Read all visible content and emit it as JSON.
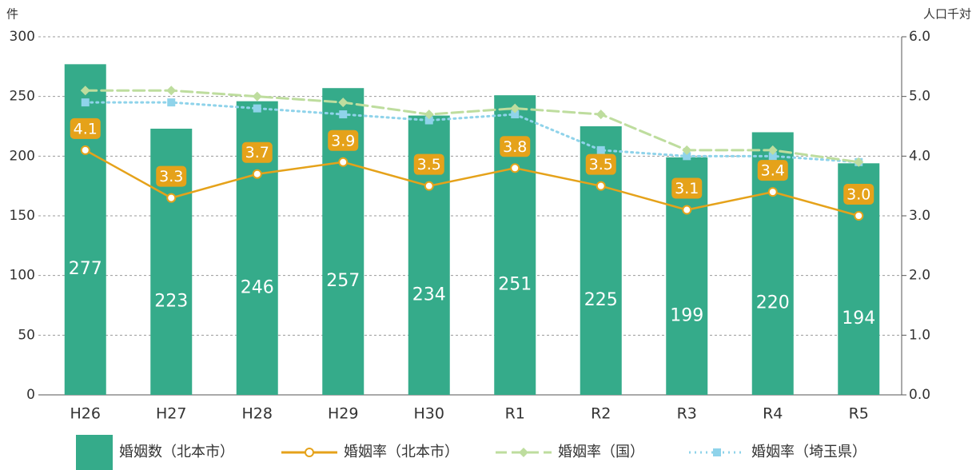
{
  "chart_data": {
    "type": "bar",
    "y_unit": "件",
    "y2_unit": "人口千対",
    "categories": [
      "H26",
      "H27",
      "H28",
      "H29",
      "H30",
      "R1",
      "R2",
      "R3",
      "R4",
      "R5"
    ],
    "series": [
      {
        "name": "婚姻数（北本市）",
        "type": "bar",
        "color": "#35ab8a",
        "values": [
          277,
          223,
          246,
          257,
          234,
          251,
          225,
          199,
          220,
          194
        ]
      },
      {
        "name": "婚姻率（北本市）",
        "type": "line",
        "axis": "y2",
        "color": "#e5a21a",
        "marker": "circle",
        "dash": "solid",
        "values": [
          4.1,
          3.3,
          3.7,
          3.9,
          3.5,
          3.8,
          3.5,
          3.1,
          3.4,
          3.0
        ],
        "value_labels": [
          "4.1",
          "3.3",
          "3.7",
          "3.9",
          "3.5",
          "3.8",
          "3.5",
          "3.1",
          "3.4",
          "3.0"
        ]
      },
      {
        "name": "婚姻率（国）",
        "type": "line",
        "axis": "y2",
        "color": "#bedd9e",
        "marker": "diamond",
        "dash": "dashed",
        "values": [
          5.1,
          5.1,
          5.0,
          4.9,
          4.7,
          4.8,
          4.7,
          4.1,
          4.1,
          3.9
        ]
      },
      {
        "name": "婚姻率（埼玉県）",
        "type": "line",
        "axis": "y2",
        "color": "#8fd3ea",
        "marker": "square",
        "dash": "dotted",
        "values": [
          4.9,
          4.9,
          4.8,
          4.7,
          4.6,
          4.7,
          4.1,
          4.0,
          4.0,
          3.9
        ]
      }
    ],
    "ylim": [
      0,
      300
    ],
    "yticks": [
      0,
      50,
      100,
      150,
      200,
      250,
      300
    ],
    "y2lim": [
      0,
      6
    ],
    "y2ticks": [
      {
        "value": 0,
        "label": "0.0"
      },
      {
        "value": 1,
        "label": "1.0"
      },
      {
        "value": 2,
        "label": "2.0"
      },
      {
        "value": 3,
        "label": "3.0"
      },
      {
        "value": 4,
        "label": "4.0"
      },
      {
        "value": 5,
        "label": "5.0"
      },
      {
        "value": 6,
        "label": "6.0"
      }
    ],
    "grid": true,
    "legend": "bottom"
  }
}
